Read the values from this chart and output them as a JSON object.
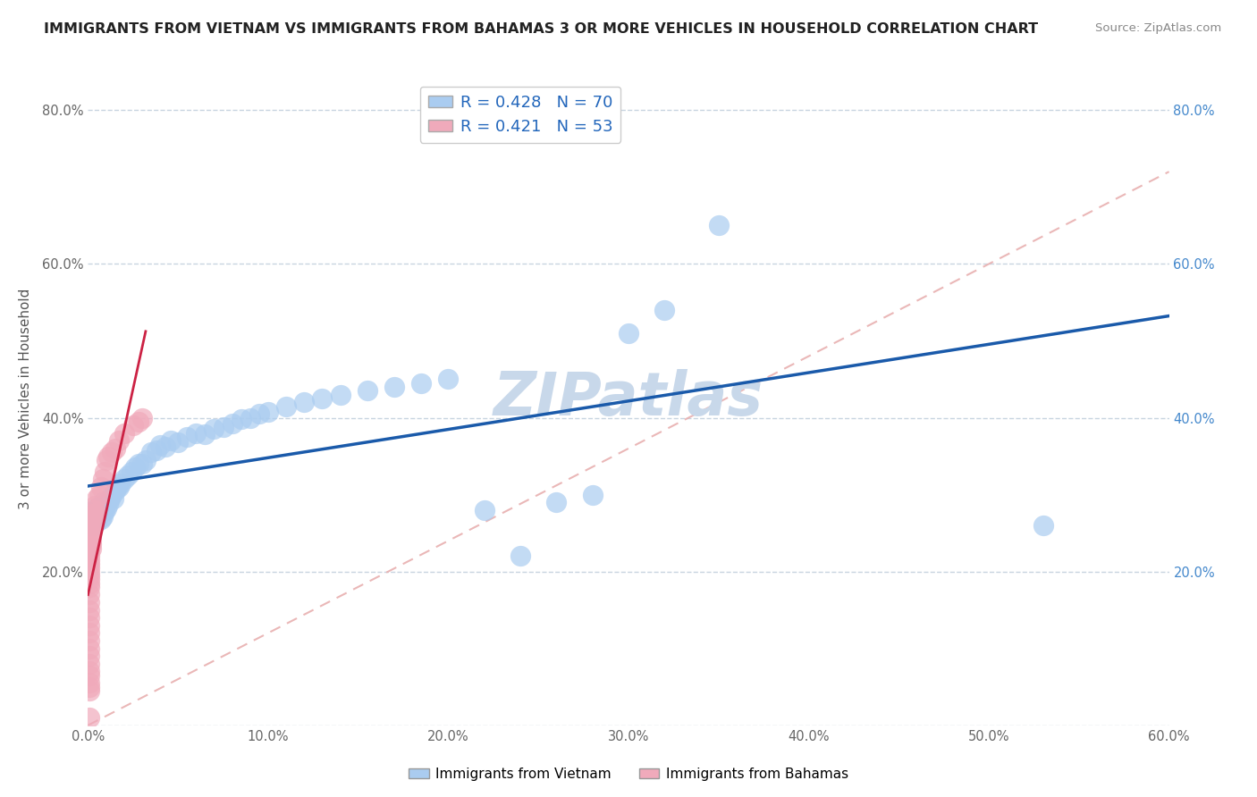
{
  "title": "IMMIGRANTS FROM VIETNAM VS IMMIGRANTS FROM BAHAMAS 3 OR MORE VEHICLES IN HOUSEHOLD CORRELATION CHART",
  "source": "Source: ZipAtlas.com",
  "ylabel": "3 or more Vehicles in Household",
  "xlabel": "",
  "xlim": [
    0.0,
    0.6
  ],
  "ylim": [
    0.0,
    0.85
  ],
  "legend1_label": "Immigrants from Vietnam",
  "legend2_label": "Immigrants from Bahamas",
  "R_vietnam": 0.428,
  "N_vietnam": 70,
  "R_bahamas": 0.421,
  "N_bahamas": 53,
  "vietnam_color": "#aaccf0",
  "bahamas_color": "#f0aabb",
  "vietnam_line_color": "#1a5aaa",
  "bahamas_line_color": "#cc2244",
  "diagonal_color": "#e8b0b0",
  "background_color": "#ffffff",
  "grid_color": "#c8d4e0",
  "watermark_color": "#c8d8ea",
  "vietnam_x": [
    0.001,
    0.002,
    0.002,
    0.003,
    0.003,
    0.003,
    0.004,
    0.004,
    0.005,
    0.005,
    0.005,
    0.006,
    0.006,
    0.007,
    0.007,
    0.007,
    0.008,
    0.008,
    0.008,
    0.009,
    0.009,
    0.01,
    0.01,
    0.011,
    0.012,
    0.013,
    0.014,
    0.015,
    0.016,
    0.017,
    0.018,
    0.02,
    0.022,
    0.024,
    0.026,
    0.028,
    0.03,
    0.032,
    0.035,
    0.038,
    0.04,
    0.043,
    0.046,
    0.05,
    0.055,
    0.06,
    0.065,
    0.07,
    0.075,
    0.08,
    0.085,
    0.09,
    0.095,
    0.1,
    0.11,
    0.12,
    0.13,
    0.14,
    0.155,
    0.17,
    0.185,
    0.2,
    0.22,
    0.24,
    0.26,
    0.28,
    0.3,
    0.32,
    0.35,
    0.53
  ],
  "vietnam_y": [
    0.26,
    0.265,
    0.27,
    0.26,
    0.272,
    0.28,
    0.268,
    0.275,
    0.27,
    0.265,
    0.28,
    0.275,
    0.285,
    0.268,
    0.278,
    0.285,
    0.272,
    0.28,
    0.29,
    0.278,
    0.285,
    0.282,
    0.29,
    0.288,
    0.295,
    0.3,
    0.295,
    0.305,
    0.31,
    0.31,
    0.315,
    0.32,
    0.325,
    0.33,
    0.335,
    0.34,
    0.34,
    0.345,
    0.355,
    0.358,
    0.365,
    0.362,
    0.37,
    0.368,
    0.375,
    0.38,
    0.378,
    0.385,
    0.388,
    0.392,
    0.398,
    0.4,
    0.405,
    0.408,
    0.415,
    0.42,
    0.425,
    0.43,
    0.435,
    0.44,
    0.445,
    0.45,
    0.28,
    0.22,
    0.29,
    0.3,
    0.51,
    0.54,
    0.65,
    0.26
  ],
  "bahamas_x": [
    0.001,
    0.001,
    0.001,
    0.001,
    0.001,
    0.001,
    0.001,
    0.001,
    0.001,
    0.001,
    0.001,
    0.001,
    0.001,
    0.001,
    0.001,
    0.001,
    0.001,
    0.001,
    0.001,
    0.001,
    0.001,
    0.001,
    0.001,
    0.001,
    0.001,
    0.002,
    0.002,
    0.002,
    0.002,
    0.002,
    0.002,
    0.002,
    0.003,
    0.003,
    0.003,
    0.004,
    0.004,
    0.004,
    0.005,
    0.006,
    0.007,
    0.008,
    0.009,
    0.01,
    0.011,
    0.013,
    0.015,
    0.017,
    0.02,
    0.025,
    0.028,
    0.03,
    0.001
  ],
  "bahamas_y": [
    0.045,
    0.05,
    0.055,
    0.065,
    0.07,
    0.08,
    0.09,
    0.1,
    0.11,
    0.12,
    0.13,
    0.14,
    0.15,
    0.16,
    0.17,
    0.18,
    0.185,
    0.19,
    0.195,
    0.2,
    0.205,
    0.21,
    0.215,
    0.22,
    0.225,
    0.23,
    0.235,
    0.24,
    0.245,
    0.25,
    0.255,
    0.26,
    0.265,
    0.27,
    0.275,
    0.275,
    0.28,
    0.285,
    0.295,
    0.3,
    0.31,
    0.32,
    0.33,
    0.345,
    0.35,
    0.355,
    0.36,
    0.37,
    0.38,
    0.39,
    0.395,
    0.4,
    0.01
  ]
}
